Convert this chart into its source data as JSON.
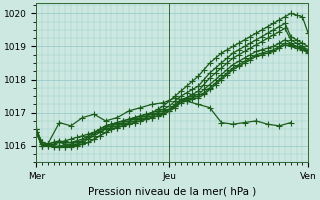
{
  "xlabel": "Pression niveau de la mer( hPa )",
  "bg_color": "#cce8e0",
  "grid_color": "#99cccc",
  "line_color": "#1a5c1a",
  "xlim": [
    0,
    47
  ],
  "ylim": [
    1015.5,
    1020.3
  ],
  "yticks": [
    1016,
    1017,
    1018,
    1019,
    1020
  ],
  "xtick_labels": [
    "Mer",
    "Jeu",
    "Ven"
  ],
  "xtick_positions": [
    0,
    23,
    47
  ],
  "marker": "+",
  "markersize": 4,
  "linewidth": 0.9,
  "series": [
    [
      1016.4,
      1016.0,
      1016.0,
      1016.05,
      1016.1,
      1016.15,
      1016.2,
      1016.25,
      1016.3,
      1016.35,
      1016.4,
      1016.5,
      1016.6,
      1016.65,
      1016.7,
      1016.75,
      1016.8,
      1016.85,
      1016.9,
      1016.95,
      1017.0,
      1017.1,
      1017.2,
      1017.35,
      1017.5,
      1017.65,
      1017.8,
      1017.95,
      1018.1,
      1018.3,
      1018.5,
      1018.65,
      1018.8,
      1018.9,
      1019.0,
      1019.1,
      1019.2,
      1019.3,
      1019.4,
      1019.5,
      1019.6,
      1019.7,
      1019.8,
      1019.9,
      1020.0,
      1019.95,
      1019.9,
      1019.4
    ],
    [
      1016.4,
      1016.0,
      1016.05,
      1016.1,
      1016.15,
      1016.1,
      1016.1,
      1016.15,
      1016.2,
      1016.3,
      1016.4,
      1016.5,
      1016.6,
      1016.65,
      1016.7,
      1016.75,
      1016.8,
      1016.85,
      1016.9,
      1016.95,
      1017.0,
      1017.05,
      1017.1,
      1017.2,
      1017.35,
      1017.5,
      1017.6,
      1017.7,
      1017.8,
      1018.0,
      1018.2,
      1018.35,
      1018.5,
      1018.65,
      1018.8,
      1018.9,
      1019.0,
      1019.1,
      1019.2,
      1019.3,
      1019.4,
      1019.5,
      1019.6,
      1019.7,
      1019.3,
      1019.2,
      1019.1,
      1019.0
    ],
    [
      1016.4,
      1016.0,
      1016.05,
      1016.1,
      1016.1,
      1016.05,
      1016.05,
      1016.1,
      1016.15,
      1016.25,
      1016.35,
      1016.45,
      1016.55,
      1016.6,
      1016.65,
      1016.7,
      1016.75,
      1016.8,
      1016.85,
      1016.9,
      1016.95,
      1017.0,
      1017.05,
      1017.1,
      1017.2,
      1017.35,
      1017.45,
      1017.55,
      1017.65,
      1017.85,
      1018.05,
      1018.2,
      1018.35,
      1018.5,
      1018.65,
      1018.75,
      1018.85,
      1018.95,
      1019.05,
      1019.15,
      1019.25,
      1019.35,
      1019.45,
      1019.55,
      1019.2,
      1019.1,
      1019.0,
      1018.9
    ],
    [
      1016.5,
      1016.05,
      1016.0,
      1015.95,
      1016.0,
      1016.0,
      1016.0,
      1016.05,
      1016.1,
      1016.2,
      1016.3,
      1016.4,
      1016.5,
      1016.55,
      1016.6,
      1016.65,
      1016.7,
      1016.75,
      1016.8,
      1016.85,
      1016.9,
      1016.95,
      1017.0,
      1017.1,
      1017.25,
      1017.4,
      1017.45,
      1017.5,
      1017.55,
      1017.7,
      1017.85,
      1018.0,
      1018.15,
      1018.3,
      1018.45,
      1018.55,
      1018.65,
      1018.75,
      1018.85,
      1018.9,
      1018.95,
      1019.0,
      1019.1,
      1019.2,
      1019.1,
      1019.0,
      1018.95,
      1018.85
    ],
    [
      1016.5,
      1016.1,
      1016.05,
      1016.0,
      1015.95,
      1015.95,
      1016.0,
      1016.0,
      1016.05,
      1016.1,
      1016.2,
      1016.3,
      1016.4,
      1016.5,
      1016.55,
      1016.6,
      1016.65,
      1016.7,
      1016.75,
      1016.8,
      1016.85,
      1016.9,
      1016.95,
      1017.05,
      1017.2,
      1017.35,
      1017.4,
      1017.45,
      1017.5,
      1017.6,
      1017.75,
      1017.9,
      1018.05,
      1018.2,
      1018.35,
      1018.45,
      1018.55,
      1018.65,
      1018.75,
      1018.8,
      1018.85,
      1018.9,
      1019.0,
      1019.1,
      1019.05,
      1019.0,
      1018.95,
      1018.85
    ],
    [
      1016.5,
      1016.1,
      1016.05,
      1016.0,
      1015.95,
      1015.95,
      1015.97,
      1016.0,
      1016.05,
      1016.1,
      1016.2,
      1016.3,
      1016.4,
      1016.5,
      1016.55,
      1016.6,
      1016.65,
      1016.7,
      1016.75,
      1016.8,
      1016.85,
      1016.9,
      1016.95,
      1017.05,
      1017.15,
      1017.3,
      1017.35,
      1017.4,
      1017.45,
      1017.55,
      1017.7,
      1017.85,
      1018.0,
      1018.15,
      1018.3,
      1018.4,
      1018.5,
      1018.6,
      1018.7,
      1018.75,
      1018.8,
      1018.85,
      1018.95,
      1019.05,
      1019.0,
      1018.95,
      1018.9,
      1018.8
    ]
  ],
  "wiggly_series_x": [
    2,
    4,
    6,
    8,
    10,
    12,
    14,
    16,
    18,
    20,
    22,
    24,
    26,
    28,
    30,
    32,
    34,
    36,
    38,
    40,
    42,
    44
  ],
  "wiggly_series_y": [
    1016.05,
    1016.7,
    1016.6,
    1016.85,
    1016.95,
    1016.75,
    1016.85,
    1017.05,
    1017.15,
    1017.25,
    1017.3,
    1017.45,
    1017.35,
    1017.25,
    1017.15,
    1016.7,
    1016.65,
    1016.7,
    1016.75,
    1016.65,
    1016.6,
    1016.7
  ]
}
